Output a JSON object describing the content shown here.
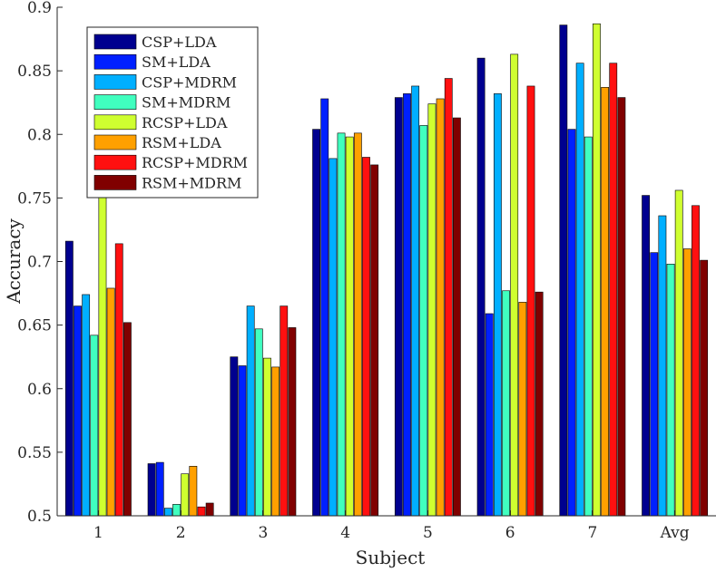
{
  "chart_data": {
    "type": "bar",
    "xlabel": "Subject",
    "ylabel": "Accuracy",
    "ylim": [
      0.5,
      0.9
    ],
    "yticks": [
      "0.5",
      "0.55",
      "0.6",
      "0.65",
      "0.7",
      "0.75",
      "0.8",
      "0.85",
      "0.9"
    ],
    "categories": [
      "1",
      "2",
      "3",
      "4",
      "5",
      "6",
      "7",
      "Avg"
    ],
    "legend_position": "top-left",
    "series": [
      {
        "name": "CSP+LDA",
        "color": "#00008f",
        "values": [
          0.716,
          0.541,
          0.625,
          0.804,
          0.829,
          0.86,
          0.886,
          0.752
        ]
      },
      {
        "name": "SM+LDA",
        "color": "#0020ff",
        "values": [
          0.665,
          0.542,
          0.618,
          0.828,
          0.832,
          0.659,
          0.804,
          0.707
        ]
      },
      {
        "name": "CSP+MDRM",
        "color": "#00afff",
        "values": [
          0.674,
          0.506,
          0.665,
          0.781,
          0.838,
          0.832,
          0.856,
          0.736
        ]
      },
      {
        "name": "SM+MDRM",
        "color": "#40ffbf",
        "values": [
          0.642,
          0.509,
          0.647,
          0.801,
          0.807,
          0.677,
          0.798,
          0.698
        ]
      },
      {
        "name": "RCSP+LDA",
        "color": "#cfff30",
        "values": [
          0.755,
          0.533,
          0.624,
          0.798,
          0.824,
          0.863,
          0.887,
          0.756
        ]
      },
      {
        "name": "RSM+LDA",
        "color": "#ffa000",
        "values": [
          0.679,
          0.539,
          0.617,
          0.801,
          0.828,
          0.668,
          0.837,
          0.71
        ]
      },
      {
        "name": "RCSP+MDRM",
        "color": "#ff1010",
        "values": [
          0.714,
          0.507,
          0.665,
          0.782,
          0.844,
          0.838,
          0.856,
          0.744
        ]
      },
      {
        "name": "RSM+MDRM",
        "color": "#800000",
        "values": [
          0.652,
          0.51,
          0.648,
          0.776,
          0.813,
          0.676,
          0.829,
          0.701
        ]
      }
    ]
  }
}
